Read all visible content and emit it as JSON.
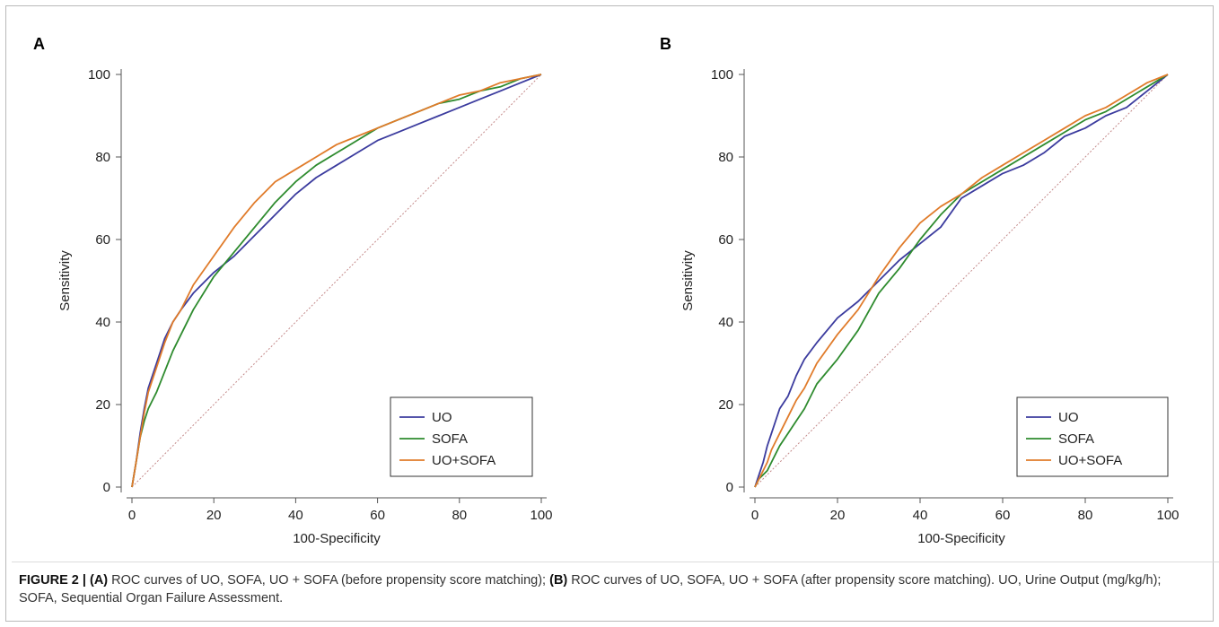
{
  "figure": {
    "label": "FIGURE 2 |",
    "caption_parts": [
      {
        "text": "(A)",
        "bold": true
      },
      {
        "text": " ROC curves of UO, SOFA, UO + SOFA (before propensity score matching); ",
        "bold": false
      },
      {
        "text": "(B)",
        "bold": true
      },
      {
        "text": " ROC curves of UO, SOFA, UO + SOFA (after propensity score matching). UO, Urine Output (mg/kg/h); SOFA, Sequential Organ Failure Assessment.",
        "bold": false
      }
    ]
  },
  "colors": {
    "UO": "#3b3b9e",
    "SOFA": "#2e8b2e",
    "UO+SOFA": "#e07b2a",
    "reference": "#c48a8a",
    "axis": "#555555"
  },
  "chart_data": [
    {
      "panel": "A",
      "type": "line",
      "xlabel": "100-Specificity",
      "ylabel": "Sensitivity",
      "xlim": [
        0,
        100
      ],
      "ylim": [
        0,
        100
      ],
      "xticks": [
        0,
        20,
        40,
        60,
        80,
        100
      ],
      "yticks": [
        0,
        20,
        40,
        60,
        80,
        100
      ],
      "legend_position": "bottom-right",
      "reference_line": [
        [
          0,
          0
        ],
        [
          100,
          100
        ]
      ],
      "series": [
        {
          "name": "UO",
          "x": [
            0,
            1,
            2,
            3,
            4,
            5,
            6,
            8,
            10,
            12,
            15,
            20,
            25,
            30,
            35,
            40,
            45,
            50,
            55,
            60,
            65,
            70,
            75,
            80,
            85,
            90,
            95,
            100
          ],
          "y": [
            0,
            6,
            13,
            19,
            24,
            27,
            30,
            36,
            40,
            43,
            47,
            52,
            56,
            61,
            66,
            71,
            75,
            78,
            81,
            84,
            86,
            88,
            90,
            92,
            94,
            96,
            98,
            100
          ]
        },
        {
          "name": "SOFA",
          "x": [
            0,
            1,
            2,
            3,
            4,
            5,
            6,
            8,
            10,
            12,
            15,
            20,
            25,
            30,
            35,
            40,
            45,
            50,
            55,
            60,
            65,
            70,
            75,
            80,
            85,
            90,
            95,
            100
          ],
          "y": [
            0,
            6,
            12,
            16,
            19,
            21,
            23,
            28,
            33,
            37,
            43,
            51,
            57,
            63,
            69,
            74,
            78,
            81,
            84,
            87,
            89,
            91,
            93,
            94,
            96,
            97,
            99,
            100
          ]
        },
        {
          "name": "UO+SOFA",
          "x": [
            0,
            1,
            2,
            3,
            4,
            5,
            6,
            8,
            10,
            12,
            15,
            20,
            25,
            30,
            35,
            40,
            45,
            50,
            55,
            60,
            65,
            70,
            75,
            80,
            85,
            90,
            95,
            100
          ],
          "y": [
            0,
            6,
            12,
            18,
            23,
            26,
            29,
            35,
            40,
            43,
            49,
            56,
            63,
            69,
            74,
            77,
            80,
            83,
            85,
            87,
            89,
            91,
            93,
            95,
            96,
            98,
            99,
            100
          ]
        }
      ]
    },
    {
      "panel": "B",
      "type": "line",
      "xlabel": "100-Specificity",
      "ylabel": "Sensitivity",
      "xlim": [
        0,
        100
      ],
      "ylim": [
        0,
        100
      ],
      "xticks": [
        0,
        20,
        40,
        60,
        80,
        100
      ],
      "yticks": [
        0,
        20,
        40,
        60,
        80,
        100
      ],
      "legend_position": "bottom-right",
      "reference_line": [
        [
          0,
          0
        ],
        [
          100,
          100
        ]
      ],
      "series": [
        {
          "name": "UO",
          "x": [
            0,
            1,
            2,
            3,
            4,
            5,
            6,
            8,
            10,
            12,
            15,
            20,
            25,
            30,
            35,
            40,
            45,
            50,
            55,
            60,
            65,
            70,
            75,
            80,
            85,
            90,
            95,
            100
          ],
          "y": [
            0,
            3,
            6,
            10,
            13,
            16,
            19,
            22,
            27,
            31,
            35,
            41,
            45,
            50,
            55,
            59,
            63,
            70,
            73,
            76,
            78,
            81,
            85,
            87,
            90,
            92,
            96,
            100
          ]
        },
        {
          "name": "SOFA",
          "x": [
            0,
            1,
            2,
            3,
            4,
            5,
            6,
            8,
            10,
            12,
            15,
            20,
            25,
            30,
            35,
            40,
            45,
            50,
            55,
            60,
            65,
            70,
            75,
            80,
            85,
            90,
            95,
            100
          ],
          "y": [
            0,
            2,
            3,
            4,
            6,
            8,
            10,
            13,
            16,
            19,
            25,
            31,
            38,
            47,
            53,
            60,
            66,
            71,
            74,
            77,
            80,
            83,
            86,
            89,
            91,
            94,
            97,
            100
          ]
        },
        {
          "name": "UO+SOFA",
          "x": [
            0,
            1,
            2,
            3,
            4,
            5,
            6,
            8,
            10,
            12,
            15,
            20,
            25,
            30,
            35,
            40,
            45,
            50,
            55,
            60,
            65,
            70,
            75,
            80,
            85,
            90,
            95,
            100
          ],
          "y": [
            0,
            2,
            4,
            6,
            9,
            11,
            13,
            17,
            21,
            24,
            30,
            37,
            43,
            51,
            58,
            64,
            68,
            71,
            75,
            78,
            81,
            84,
            87,
            90,
            92,
            95,
            98,
            100
          ]
        }
      ]
    }
  ]
}
